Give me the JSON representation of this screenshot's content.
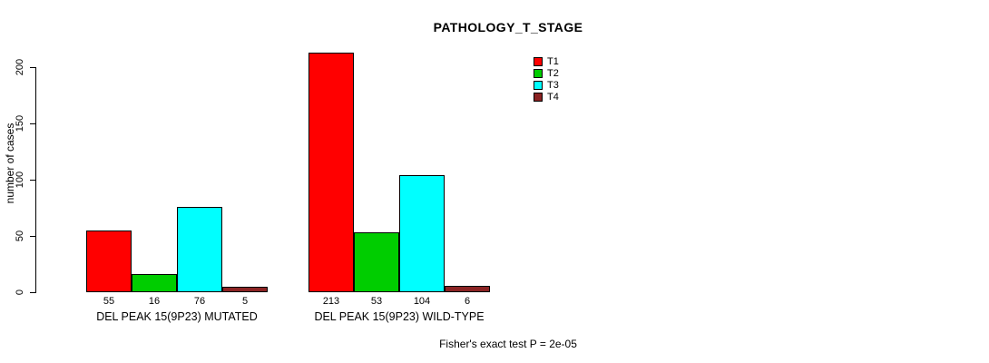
{
  "chart_data": {
    "type": "bar",
    "title": "PATHOLOGY_T_STAGE",
    "ylabel": "number of cases",
    "footer": "Fisher's exact test P = 2e-05",
    "ylim": [
      0,
      215
    ],
    "yticks": [
      0,
      50,
      100,
      150,
      200
    ],
    "grid": false,
    "legend_position": "top-right",
    "legend": [
      "T1",
      "T2",
      "T3",
      "T4"
    ],
    "series_colors": [
      "#ff0000",
      "#00cd00",
      "#00ffff",
      "#8b2323"
    ],
    "categories": [
      "DEL PEAK 15(9P23) MUTATED",
      "DEL PEAK 15(9P23) WILD-TYPE"
    ],
    "groups": [
      {
        "label": "DEL PEAK 15(9P23) MUTATED",
        "values": [
          55,
          16,
          76,
          5
        ]
      },
      {
        "label": "DEL PEAK 15(9P23) WILD-TYPE",
        "values": [
          213,
          53,
          104,
          6
        ]
      }
    ]
  }
}
